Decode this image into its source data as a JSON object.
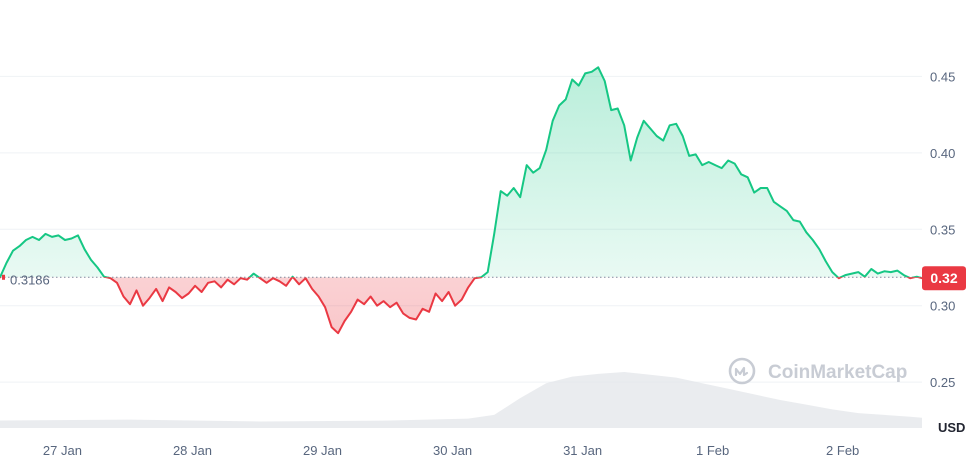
{
  "colors": {
    "up": "#16c784",
    "down": "#ea3943",
    "grid": "#eff2f5",
    "volume": "#e3e6ea",
    "text": "#58667e"
  },
  "watermark": {
    "text": "CoinMarketCap",
    "icon": "coinmarketcap-logo-icon"
  },
  "chart_data": {
    "type": "line",
    "xlabel": "",
    "ylabel": "",
    "y_unit": "USD",
    "ylim": [
      0.22,
      0.5
    ],
    "y_ticks": [
      0.25,
      0.3,
      0.35,
      0.4,
      0.45
    ],
    "y_tick_labels": [
      "0.25",
      "0.30",
      "0.35",
      "0.40",
      "0.45"
    ],
    "x_range": [
      0,
      7.09
    ],
    "x_ticks": [
      0.48,
      1.48,
      2.48,
      3.48,
      4.48,
      5.48,
      6.48
    ],
    "x_tick_labels": [
      "27 Jan",
      "28 Jan",
      "29 Jan",
      "30 Jan",
      "31 Jan",
      "1 Feb",
      "2 Feb"
    ],
    "reference_price": 0.3186,
    "reference_label": "0.3186",
    "last_price_label": "0.32",
    "grid": true,
    "series": [
      {
        "x": [
          0.0,
          0.05,
          0.1,
          0.15,
          0.2,
          0.25,
          0.3,
          0.35,
          0.4,
          0.45,
          0.5,
          0.55,
          0.6,
          0.65,
          0.7,
          0.75,
          0.8,
          0.85,
          0.9,
          0.95,
          1.0,
          1.05,
          1.1,
          1.15,
          1.2,
          1.25,
          1.3,
          1.35,
          1.4,
          1.45,
          1.5,
          1.55,
          1.6,
          1.65,
          1.7,
          1.75,
          1.8,
          1.85,
          1.9,
          1.95,
          2.0,
          2.05,
          2.1,
          2.15,
          2.2,
          2.25,
          2.3,
          2.35,
          2.4,
          2.45,
          2.5,
          2.55,
          2.6,
          2.65,
          2.7,
          2.75,
          2.8,
          2.85,
          2.9,
          2.95,
          3.0,
          3.05,
          3.1,
          3.15,
          3.2,
          3.25,
          3.3,
          3.35,
          3.4,
          3.45,
          3.5,
          3.55,
          3.6,
          3.65,
          3.7,
          3.75,
          3.8,
          3.85,
          3.9,
          3.95,
          4.0,
          4.05,
          4.1,
          4.15,
          4.2,
          4.25,
          4.3,
          4.35,
          4.4,
          4.45,
          4.5,
          4.55,
          4.6,
          4.65,
          4.7,
          4.75,
          4.8,
          4.85,
          4.9,
          4.95,
          5.0,
          5.05,
          5.1,
          5.15,
          5.2,
          5.25,
          5.3,
          5.35,
          5.4,
          5.45,
          5.5,
          5.55,
          5.6,
          5.65,
          5.7,
          5.75,
          5.8,
          5.85,
          5.9,
          5.95,
          6.0,
          6.05,
          6.1,
          6.15,
          6.2,
          6.25,
          6.3,
          6.35,
          6.4,
          6.45,
          6.5,
          6.55,
          6.6,
          6.65,
          6.7,
          6.75,
          6.8,
          6.85,
          6.9,
          6.95,
          7.0,
          7.05,
          7.09
        ],
        "y": [
          0.3186,
          0.328,
          0.336,
          0.339,
          0.343,
          0.345,
          0.343,
          0.347,
          0.345,
          0.346,
          0.343,
          0.344,
          0.346,
          0.337,
          0.33,
          0.325,
          0.319,
          0.318,
          0.315,
          0.306,
          0.301,
          0.31,
          0.3,
          0.305,
          0.311,
          0.303,
          0.312,
          0.309,
          0.305,
          0.308,
          0.313,
          0.309,
          0.315,
          0.316,
          0.312,
          0.317,
          0.314,
          0.318,
          0.317,
          0.321,
          0.318,
          0.315,
          0.318,
          0.316,
          0.313,
          0.319,
          0.314,
          0.318,
          0.311,
          0.306,
          0.299,
          0.286,
          0.282,
          0.29,
          0.296,
          0.304,
          0.301,
          0.306,
          0.3,
          0.303,
          0.299,
          0.302,
          0.295,
          0.292,
          0.291,
          0.298,
          0.296,
          0.308,
          0.303,
          0.309,
          0.3,
          0.304,
          0.312,
          0.318,
          0.3186,
          0.322,
          0.347,
          0.375,
          0.372,
          0.377,
          0.371,
          0.392,
          0.387,
          0.39,
          0.402,
          0.421,
          0.431,
          0.435,
          0.448,
          0.444,
          0.452,
          0.453,
          0.456,
          0.447,
          0.428,
          0.429,
          0.418,
          0.395,
          0.41,
          0.421,
          0.416,
          0.411,
          0.408,
          0.418,
          0.419,
          0.411,
          0.398,
          0.399,
          0.392,
          0.394,
          0.392,
          0.39,
          0.395,
          0.393,
          0.386,
          0.384,
          0.374,
          0.377,
          0.377,
          0.368,
          0.365,
          0.362,
          0.356,
          0.355,
          0.348,
          0.343,
          0.337,
          0.329,
          0.322,
          0.318,
          0.32,
          0.321,
          0.322,
          0.319,
          0.324,
          0.321,
          0.3225,
          0.322,
          0.323,
          0.32,
          0.318,
          0.319,
          0.318
        ]
      }
    ],
    "volume": {
      "x": [
        0.0,
        1.0,
        2.0,
        3.0,
        3.6,
        3.8,
        4.0,
        4.2,
        4.4,
        4.6,
        4.8,
        5.0,
        5.2,
        5.4,
        5.6,
        5.8,
        6.0,
        6.2,
        6.4,
        6.6,
        6.8,
        7.0,
        7.09
      ],
      "values": [
        8,
        9,
        7,
        8,
        10,
        14,
        32,
        48,
        55,
        58,
        60,
        57,
        54,
        48,
        42,
        36,
        30,
        25,
        20,
        16,
        14,
        12,
        11
      ]
    }
  }
}
